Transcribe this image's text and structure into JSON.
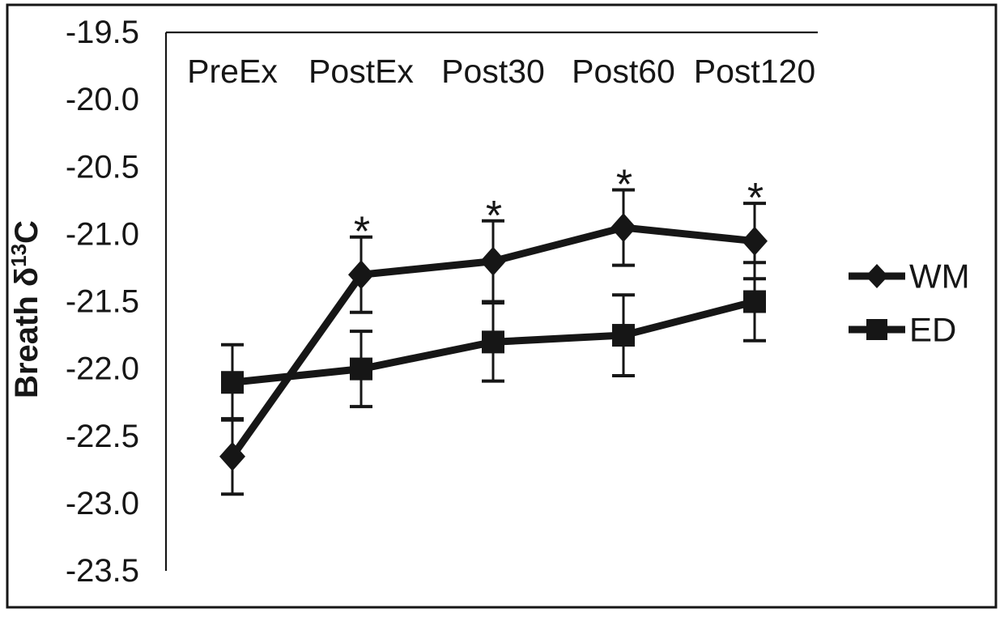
{
  "figure": {
    "background": "#ffffff",
    "ink_color": "#161616",
    "border_style": "thin black rectangle around entire figure"
  },
  "chart_data": {
    "type": "line",
    "title": "",
    "xlabel": "",
    "ylabel_prefix": "Breath δ",
    "ylabel_superscript": "13",
    "ylabel_suffix": "C",
    "ylabel_full": "Breath δ13C",
    "categories": [
      "PreEx",
      "PostEx",
      "Post30",
      "Post60",
      "Post120"
    ],
    "category_label_position": "top-inside",
    "series": [
      {
        "name": "WM",
        "marker": "diamond",
        "color": "#161616",
        "values": [
          -22.65,
          -21.3,
          -21.2,
          -20.95,
          -21.05
        ],
        "errors": [
          0.28,
          0.28,
          0.3,
          0.28,
          0.28
        ],
        "significant": [
          false,
          true,
          true,
          true,
          true
        ]
      },
      {
        "name": "ED",
        "marker": "square",
        "color": "#161616",
        "values": [
          -22.1,
          -22.0,
          -21.8,
          -21.75,
          -21.5
        ],
        "errors": [
          0.28,
          0.28,
          0.29,
          0.3,
          0.29
        ],
        "significant": [
          false,
          false,
          false,
          false,
          false
        ]
      }
    ],
    "ylim": [
      -23.5,
      -19.5
    ],
    "yticks": [
      -19.5,
      -20.0,
      -20.5,
      -21.0,
      -21.5,
      -22.0,
      -22.5,
      -23.0,
      -23.5
    ],
    "ytick_labels": [
      "-19.5",
      "-20.0",
      "-20.5",
      "-21.0",
      "-21.5",
      "-22.0",
      "-22.5",
      "-23.0",
      "-23.5"
    ],
    "significance_symbol": "*",
    "error_bars": "vertical with end caps, approx ±0.3",
    "grid": "off",
    "legend_position": "right-outside",
    "legend_entries": [
      "WM",
      "ED"
    ]
  }
}
